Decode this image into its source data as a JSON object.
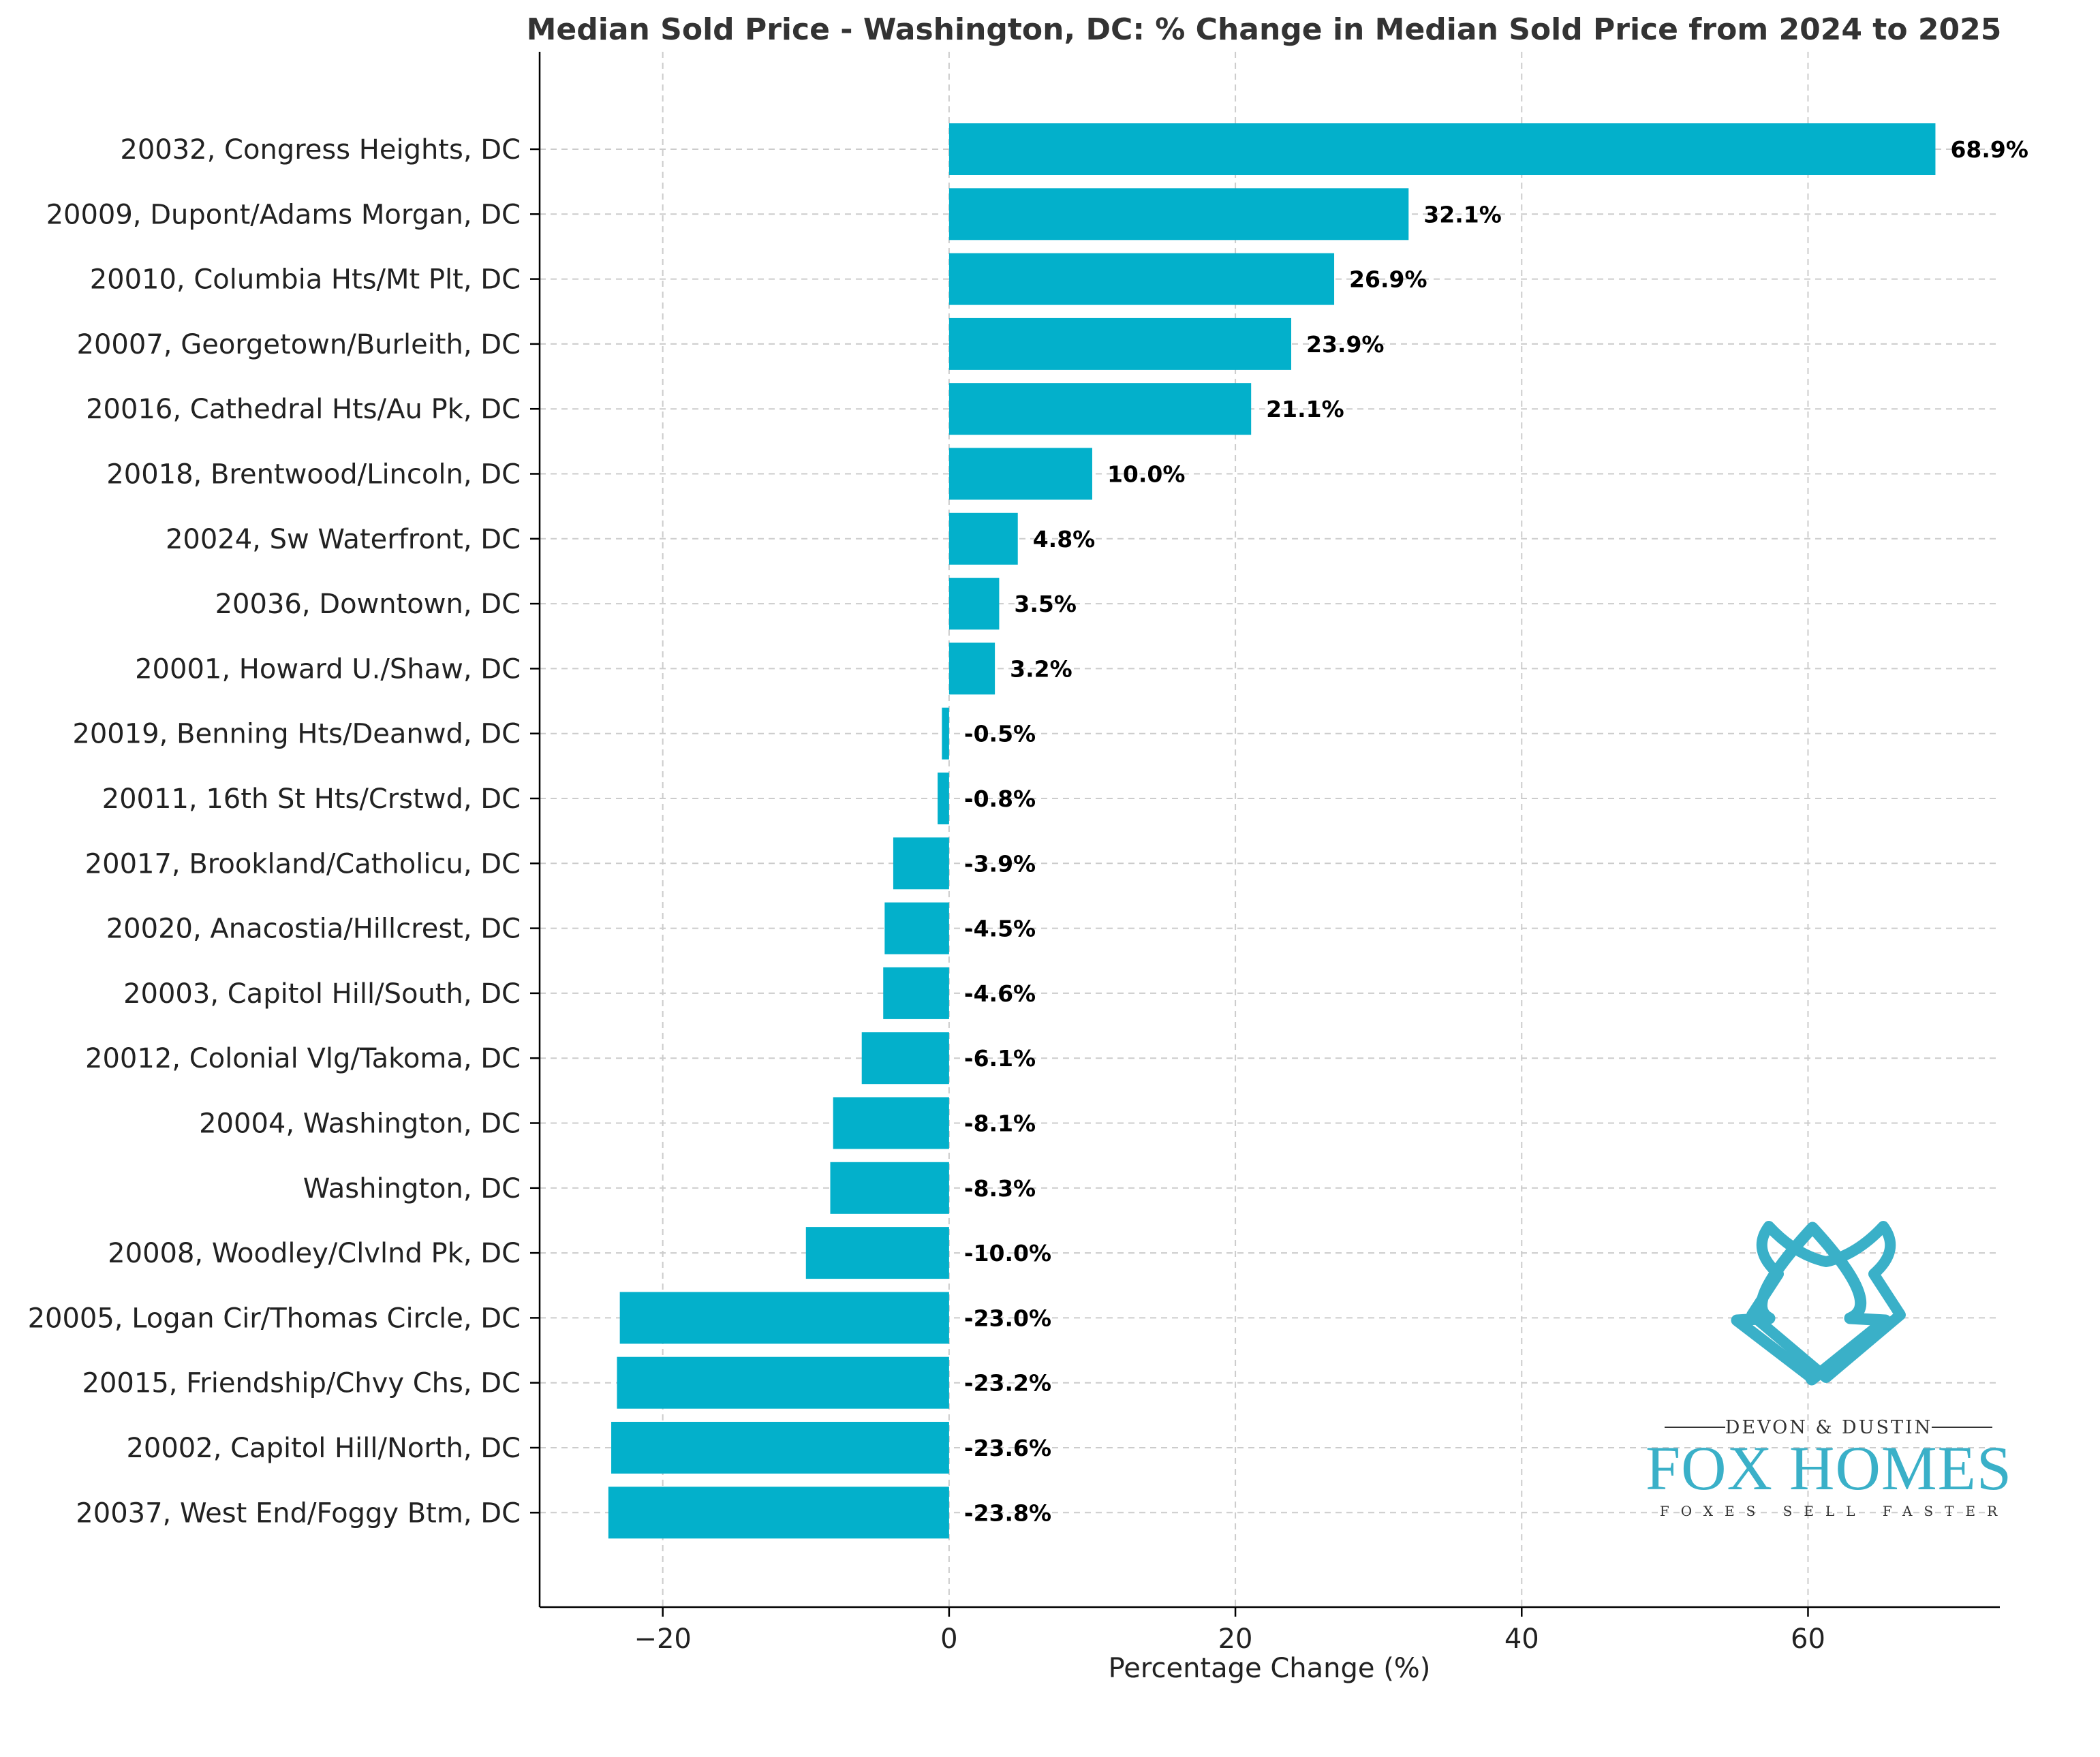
{
  "chart_data": {
    "type": "bar",
    "orientation": "horizontal",
    "title": "Median Sold Price - Washington, DC: % Change in Median Sold Price from 2024 to 2025",
    "xlabel": "Percentage Change (%)",
    "ylabel": "",
    "xlim": [
      -28.6,
      73.4
    ],
    "xticks": [
      -20,
      0,
      20,
      40,
      60
    ],
    "xtick_labels": [
      "−20",
      "0",
      "20",
      "40",
      "60"
    ],
    "grid": true,
    "bar_color": "#03b0cb",
    "categories": [
      "20032, Congress Heights, DC",
      "20009, Dupont/Adams Morgan, DC",
      "20010, Columbia Hts/Mt Plt, DC",
      "20007, Georgetown/Burleith, DC",
      "20016, Cathedral Hts/Au Pk, DC",
      "20018, Brentwood/Lincoln, DC",
      "20024, Sw Waterfront, DC",
      "20036, Downtown, DC",
      "20001, Howard U./Shaw, DC",
      "20019, Benning Hts/Deanwd, DC",
      "20011, 16th St Hts/Crstwd, DC",
      "20017, Brookland/Catholicu, DC",
      "20020, Anacostia/Hillcrest, DC",
      "20003, Capitol Hill/South, DC",
      "20012, Colonial Vlg/Takoma, DC",
      "20004, Washington, DC",
      "Washington, DC",
      "20008, Woodley/Clvlnd Pk, DC",
      "20005, Logan Cir/Thomas Circle, DC",
      "20015, Friendship/Chvy Chs, DC",
      "20002, Capitol Hill/North, DC",
      "20037, West End/Foggy Btm, DC"
    ],
    "values": [
      68.9,
      32.1,
      26.9,
      23.9,
      21.1,
      10.0,
      4.8,
      3.5,
      3.2,
      -0.5,
      -0.8,
      -3.9,
      -4.5,
      -4.6,
      -6.1,
      -8.1,
      -8.3,
      -10.0,
      -23.0,
      -23.2,
      -23.6,
      -23.8
    ],
    "value_labels": [
      "68.9%",
      "32.1%",
      "26.9%",
      "23.9%",
      "21.1%",
      "10.0%",
      "4.8%",
      "3.5%",
      "3.2%",
      "-0.5%",
      "-0.8%",
      "-3.9%",
      "-4.5%",
      "-4.6%",
      "-6.1%",
      "-8.1%",
      "-8.3%",
      "-10.0%",
      "-23.0%",
      "-23.2%",
      "-23.6%",
      "-23.8%"
    ]
  },
  "logo": {
    "top_line": "DEVON & DUSTIN",
    "main": "FOX HOMES",
    "tagline": "FOXES SELL FASTER",
    "color": "#3ab0c8",
    "icon": "fox-head-icon"
  }
}
